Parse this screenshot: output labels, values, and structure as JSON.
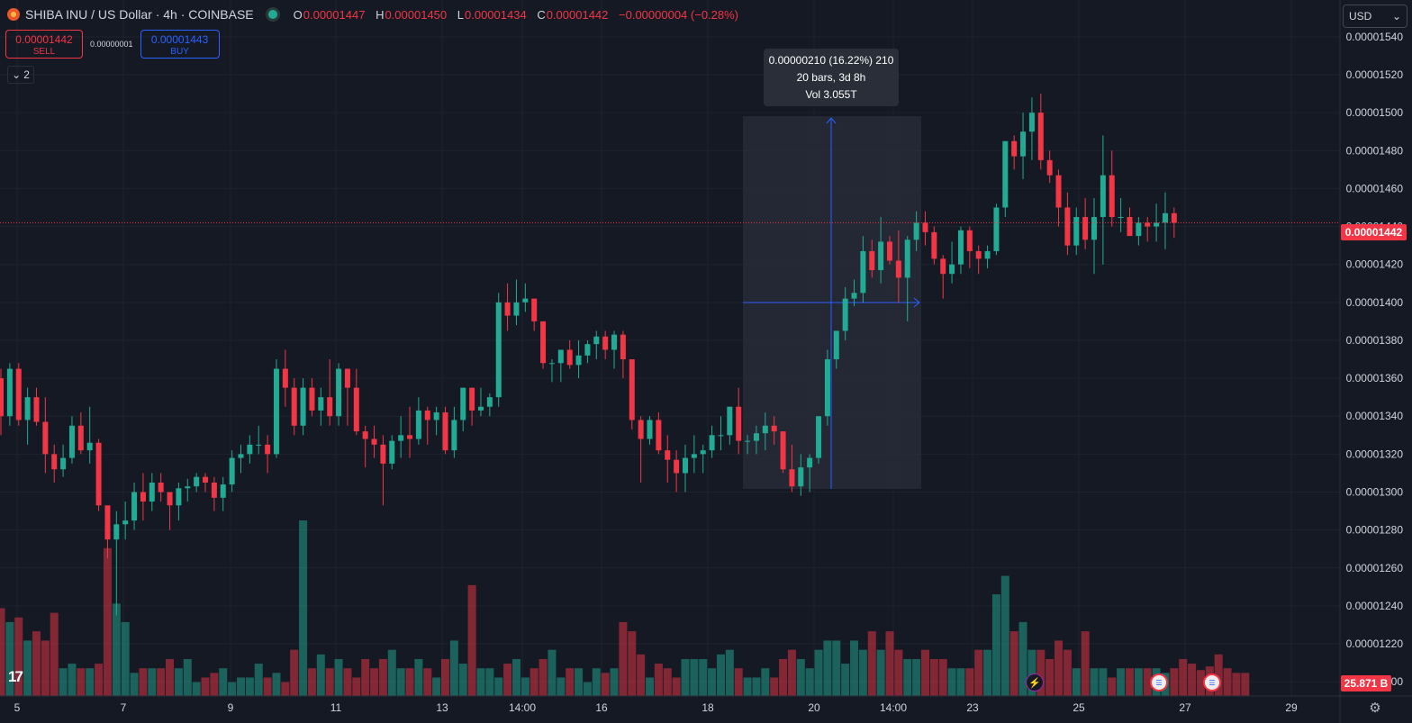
{
  "header": {
    "symbol": "SHIBA INU / US Dollar · 4h · COINBASE",
    "ohlc": [
      {
        "key": "O",
        "value": "0.00001447"
      },
      {
        "key": "H",
        "value": "0.00001450"
      },
      {
        "key": "L",
        "value": "0.00001434"
      },
      {
        "key": "C",
        "value": "0.00001442"
      }
    ],
    "change": "−0.00000004 (−0.28%)"
  },
  "trade": {
    "sell_price": "0.00001442",
    "sell_label": "SELL",
    "spread": "0.00000001",
    "buy_price": "0.00001443",
    "buy_label": "BUY"
  },
  "indicators_collapsed": "2",
  "currency": "USD",
  "tooltip": {
    "line1": "0.00000210 (16.22%) 210",
    "line2": "20 bars, 3d 8h",
    "line3": "Vol 3.055T"
  },
  "last_price_label": "0.00001442",
  "volume_label": "25.871 B",
  "logo_text": "17",
  "colors": {
    "up": "#22ab94",
    "down": "#f23645",
    "background": "#151924",
    "axis_text": "#d1d4dc",
    "measure": "#2962ff"
  },
  "icons": [
    "bolt-icon",
    "us-flag-icon",
    "us-flag-icon",
    "gear-icon"
  ],
  "chart_data": {
    "type": "candlestick",
    "y_ticks": [
      "0.00001540",
      "0.00001520",
      "0.00001500",
      "0.00001480",
      "0.00001460",
      "0.00001440",
      "0.00001420",
      "0.00001400",
      "0.00001380",
      "0.00001360",
      "0.00001340",
      "0.00001320",
      "0.00001300",
      "0.00001280",
      "0.00001260",
      "0.00001240",
      "0.00001220",
      "0.00001200"
    ],
    "x_ticks": [
      "5",
      "7",
      "9",
      "11",
      "13",
      "14:00",
      "16",
      "18",
      "20",
      "14:00",
      "23",
      "25",
      "27",
      "29"
    ],
    "last_price": 1.442e-05,
    "ylim": [
      1.1925e-05,
      1.5594e-05
    ],
    "candles": [
      [
        1.36e-05,
        1.365e-05,
        1.33e-05,
        1.34e-05
      ],
      [
        1.34e-05,
        1.368e-05,
        1.335e-05,
        1.365e-05
      ],
      [
        1.365e-05,
        1.368e-05,
        1.335e-05,
        1.338e-05
      ],
      [
        1.338e-05,
        1.355e-05,
        1.325e-05,
        1.35e-05
      ],
      [
        1.35e-05,
        1.355e-05,
        1.335e-05,
        1.337e-05
      ],
      [
        1.337e-05,
        1.35e-05,
        1.31e-05,
        1.32e-05
      ],
      [
        1.32e-05,
        1.325e-05,
        1.305e-05,
        1.312e-05
      ],
      [
        1.312e-05,
        1.325e-05,
        1.308e-05,
        1.318e-05
      ],
      [
        1.318e-05,
        1.34e-05,
        1.315e-05,
        1.335e-05
      ],
      [
        1.335e-05,
        1.342e-05,
        1.32e-05,
        1.322e-05
      ],
      [
        1.322e-05,
        1.345e-05,
        1.315e-05,
        1.326e-05
      ],
      [
        1.326e-05,
        1.328e-05,
        1.29e-05,
        1.293e-05
      ],
      [
        1.293e-05,
        1.29e-05,
        1.265e-05,
        1.275e-05
      ],
      [
        1.275e-05,
        1.29e-05,
        1.235e-05,
        1.283e-05
      ],
      [
        1.283e-05,
        1.295e-05,
        1.275e-05,
        1.285e-05
      ],
      [
        1.285e-05,
        1.305e-05,
        1.28e-05,
        1.3e-05
      ],
      [
        1.3e-05,
        1.31e-05,
        1.285e-05,
        1.295e-05
      ],
      [
        1.295e-05,
        1.31e-05,
        1.29e-05,
        1.305e-05
      ],
      [
        1.305e-05,
        1.31e-05,
        1.295e-05,
        1.3e-05
      ],
      [
        1.3e-05,
        1.3e-05,
        1.28e-05,
        1.293e-05
      ],
      [
        1.293e-05,
        1.305e-05,
        1.285e-05,
        1.302e-05
      ],
      [
        1.302e-05,
        1.307e-05,
        1.295e-05,
        1.303e-05
      ],
      [
        1.303e-05,
        1.31e-05,
        1.3e-05,
        1.308e-05
      ],
      [
        1.308e-05,
        1.31e-05,
        1.3e-05,
        1.305e-05
      ],
      [
        1.305e-05,
        1.308e-05,
        1.29e-05,
        1.297e-05
      ],
      [
        1.297e-05,
        1.308e-05,
        1.29e-05,
        1.304e-05
      ],
      [
        1.304e-05,
        1.322e-05,
        1.3e-05,
        1.318e-05
      ],
      [
        1.318e-05,
        1.325e-05,
        1.31e-05,
        1.32e-05
      ],
      [
        1.32e-05,
        1.33e-05,
        1.315e-05,
        1.325e-05
      ],
      [
        1.325e-05,
        1.335e-05,
        1.32e-05,
        1.325e-05
      ],
      [
        1.325e-05,
        1.33e-05,
        1.31e-05,
        1.32e-05
      ],
      [
        1.32e-05,
        1.37e-05,
        1.318e-05,
        1.365e-05
      ],
      [
        1.365e-05,
        1.375e-05,
        1.345e-05,
        1.355e-05
      ],
      [
        1.355e-05,
        1.36e-05,
        1.33e-05,
        1.335e-05
      ],
      [
        1.335e-05,
        1.36e-05,
        1.33e-05,
        1.355e-05
      ],
      [
        1.355e-05,
        1.36e-05,
        1.34e-05,
        1.343e-05
      ],
      [
        1.343e-05,
        1.355e-05,
        1.335e-05,
        1.35e-05
      ],
      [
        1.35e-05,
        1.37e-05,
        1.335e-05,
        1.34e-05
      ],
      [
        1.34e-05,
        1.368e-05,
        1.335e-05,
        1.365e-05
      ],
      [
        1.365e-05,
        1.365e-05,
        1.335e-05,
        1.355e-05
      ],
      [
        1.355e-05,
        1.365e-05,
        1.33e-05,
        1.332e-05
      ],
      [
        1.332e-05,
        1.335e-05,
        1.313e-05,
        1.328e-05
      ],
      [
        1.328e-05,
        1.335e-05,
        1.318e-05,
        1.325e-05
      ],
      [
        1.325e-05,
        1.33e-05,
        1.293e-05,
        1.315e-05
      ],
      [
        1.315e-05,
        1.33e-05,
        1.312e-05,
        1.327e-05
      ],
      [
        1.327e-05,
        1.34e-05,
        1.318e-05,
        1.33e-05
      ],
      [
        1.33e-05,
        1.345e-05,
        1.318e-05,
        1.328e-05
      ],
      [
        1.328e-05,
        1.35e-05,
        1.325e-05,
        1.343e-05
      ],
      [
        1.343e-05,
        1.345e-05,
        1.325e-05,
        1.338e-05
      ],
      [
        1.338e-05,
        1.345e-05,
        1.33e-05,
        1.342e-05
      ],
      [
        1.342e-05,
        1.345e-05,
        1.32e-05,
        1.322e-05
      ],
      [
        1.322e-05,
        1.345e-05,
        1.318e-05,
        1.338e-05
      ],
      [
        1.338e-05,
        1.355e-05,
        1.332e-05,
        1.355e-05
      ],
      [
        1.355e-05,
        1.355e-05,
        1.335e-05,
        1.343e-05
      ],
      [
        1.343e-05,
        1.355e-05,
        1.34e-05,
        1.345e-05
      ],
      [
        1.345e-05,
        1.352e-05,
        1.34e-05,
        1.35e-05
      ],
      [
        1.35e-05,
        1.405e-05,
        1.345e-05,
        1.4e-05
      ],
      [
        1.4e-05,
        1.41e-05,
        1.385e-05,
        1.393e-05
      ],
      [
        1.393e-05,
        1.412e-05,
        1.388e-05,
        1.4e-05
      ],
      [
        1.4e-05,
        1.41e-05,
        1.395e-05,
        1.402e-05
      ],
      [
        1.402e-05,
        1.402e-05,
        1.385e-05,
        1.39e-05
      ],
      [
        1.39e-05,
        1.39e-05,
        1.365e-05,
        1.368e-05
      ],
      [
        1.368e-05,
        1.37e-05,
        1.358e-05,
        1.368e-05
      ],
      [
        1.368e-05,
        1.375e-05,
        1.358e-05,
        1.375e-05
      ],
      [
        1.375e-05,
        1.38e-05,
        1.365e-05,
        1.367e-05
      ],
      [
        1.367e-05,
        1.38e-05,
        1.36e-05,
        1.372e-05
      ],
      [
        1.372e-05,
        1.38e-05,
        1.368e-05,
        1.378e-05
      ],
      [
        1.378e-05,
        1.385e-05,
        1.37e-05,
        1.382e-05
      ],
      [
        1.382e-05,
        1.385e-05,
        1.37e-05,
        1.375e-05
      ],
      [
        1.375e-05,
        1.385e-05,
        1.365e-05,
        1.383e-05
      ],
      [
        1.383e-05,
        1.385e-05,
        1.36e-05,
        1.37e-05
      ],
      [
        1.37e-05,
        1.37e-05,
        1.333e-05,
        1.338e-05
      ],
      [
        1.338e-05,
        1.34e-05,
        1.305e-05,
        1.328e-05
      ],
      [
        1.328e-05,
        1.34e-05,
        1.325e-05,
        1.338e-05
      ],
      [
        1.338e-05,
        1.342e-05,
        1.32e-05,
        1.322e-05
      ],
      [
        1.322e-05,
        1.33e-05,
        1.305e-05,
        1.317e-05
      ],
      [
        1.317e-05,
        1.322e-05,
        1.3e-05,
        1.31e-05
      ],
      [
        1.31e-05,
        1.325e-05,
        1.3e-05,
        1.318e-05
      ],
      [
        1.318e-05,
        1.33e-05,
        1.31e-05,
        1.32e-05
      ],
      [
        1.32e-05,
        1.325e-05,
        1.31e-05,
        1.322e-05
      ],
      [
        1.322e-05,
        1.335e-05,
        1.318e-05,
        1.33e-05
      ],
      [
        1.33e-05,
        1.34e-05,
        1.322e-05,
        1.33e-05
      ],
      [
        1.33e-05,
        1.345e-05,
        1.325e-05,
        1.345e-05
      ],
      [
        1.345e-05,
        1.355e-05,
        1.32e-05,
        1.327e-05
      ],
      [
        1.327e-05,
        1.33e-05,
        1.32e-05,
        1.327e-05
      ],
      [
        1.327e-05,
        1.335e-05,
        1.32e-05,
        1.331e-05
      ],
      [
        1.331e-05,
        1.342e-05,
        1.322e-05,
        1.335e-05
      ],
      [
        1.335e-05,
        1.34e-05,
        1.325e-05,
        1.332e-05
      ],
      [
        1.332e-05,
        1.332e-05,
        1.31e-05,
        1.312e-05
      ],
      [
        1.312e-05,
        1.325e-05,
        1.3e-05,
        1.303e-05
      ],
      [
        1.303e-05,
        1.32e-05,
        1.298e-05,
        1.313e-05
      ],
      [
        1.313e-05,
        1.32e-05,
        1.3e-05,
        1.318e-05
      ],
      [
        1.318e-05,
        1.34e-05,
        1.315e-05,
        1.34e-05
      ],
      [
        1.34e-05,
        1.375e-05,
        1.335e-05,
        1.37e-05
      ],
      [
        1.37e-05,
        1.385e-05,
        1.365e-05,
        1.385e-05
      ],
      [
        1.385e-05,
        1.408e-05,
        1.38e-05,
        1.402e-05
      ],
      [
        1.402e-05,
        1.412e-05,
        1.398e-05,
        1.405e-05
      ],
      [
        1.405e-05,
        1.435e-05,
        1.4e-05,
        1.427e-05
      ],
      [
        1.427e-05,
        1.433e-05,
        1.413e-05,
        1.417e-05
      ],
      [
        1.417e-05,
        1.445e-05,
        1.41e-05,
        1.432e-05
      ],
      [
        1.432e-05,
        1.435e-05,
        1.42e-05,
        1.422e-05
      ],
      [
        1.422e-05,
        1.438e-05,
        1.4e-05,
        1.413e-05
      ],
      [
        1.413e-05,
        1.435e-05,
        1.39e-05,
        1.433e-05
      ],
      [
        1.433e-05,
        1.448e-05,
        1.427e-05,
        1.442e-05
      ],
      [
        1.442e-05,
        1.448e-05,
        1.43e-05,
        1.437e-05
      ],
      [
        1.437e-05,
        1.44e-05,
        1.42e-05,
        1.423e-05
      ],
      [
        1.423e-05,
        1.425e-05,
        1.402e-05,
        1.415e-05
      ],
      [
        1.415e-05,
        1.432e-05,
        1.41e-05,
        1.42e-05
      ],
      [
        1.42e-05,
        1.44e-05,
        1.415e-05,
        1.438e-05
      ],
      [
        1.438e-05,
        1.44e-05,
        1.418e-05,
        1.427e-05
      ],
      [
        1.427e-05,
        1.43e-05,
        1.415e-05,
        1.423e-05
      ],
      [
        1.423e-05,
        1.43e-05,
        1.418e-05,
        1.427e-05
      ],
      [
        1.427e-05,
        1.452e-05,
        1.425e-05,
        1.45e-05
      ],
      [
        1.45e-05,
        1.485e-05,
        1.445e-05,
        1.485e-05
      ],
      [
        1.485e-05,
        1.488e-05,
        1.47e-05,
        1.477e-05
      ],
      [
        1.477e-05,
        1.5e-05,
        1.465e-05,
        1.49e-05
      ],
      [
        1.49e-05,
        1.508e-05,
        1.475e-05,
        1.5e-05
      ],
      [
        1.5e-05,
        1.51e-05,
        1.47e-05,
        1.475e-05
      ],
      [
        1.475e-05,
        1.48e-05,
        1.463e-05,
        1.467e-05
      ],
      [
        1.467e-05,
        1.47e-05,
        1.44e-05,
        1.45e-05
      ],
      [
        1.45e-05,
        1.458e-05,
        1.425e-05,
        1.43e-05
      ],
      [
        1.43e-05,
        1.45e-05,
        1.425e-05,
        1.445e-05
      ],
      [
        1.445e-05,
        1.455e-05,
        1.428e-05,
        1.433e-05
      ],
      [
        1.433e-05,
        1.455e-05,
        1.415e-05,
        1.445e-05
      ],
      [
        1.445e-05,
        1.488e-05,
        1.42e-05,
        1.467e-05
      ],
      [
        1.467e-05,
        1.48e-05,
        1.44e-05,
        1.445e-05
      ],
      [
        1.445e-05,
        1.455e-05,
        1.437e-05,
        1.445e-05
      ],
      [
        1.445e-05,
        1.45e-05,
        1.435e-05,
        1.435e-05
      ],
      [
        1.435e-05,
        1.445e-05,
        1.43e-05,
        1.442e-05
      ],
      [
        1.442e-05,
        1.445e-05,
        1.432e-05,
        1.44e-05
      ],
      [
        1.44e-05,
        1.452e-05,
        1.432e-05,
        1.442e-05
      ],
      [
        1.442e-05,
        1.458e-05,
        1.428e-05,
        1.447e-05
      ],
      [
        1.447e-05,
        1.45e-05,
        1.434e-05,
        1.442e-05
      ]
    ],
    "volume_units": "B",
    "volumes": [
      9.5,
      8,
      8.5,
      6,
      7,
      6,
      9,
      3,
      3.5,
      3,
      3,
      3.5,
      16,
      10,
      8,
      2.5,
      3,
      3,
      3,
      4,
      3,
      4,
      1.5,
      2,
      2.5,
      3,
      1.5,
      2,
      2,
      3.5,
      2,
      2.5,
      1.5,
      5,
      19,
      3,
      4.5,
      3,
      4,
      3,
      2,
      4,
      3,
      4,
      5,
      3,
      3,
      4,
      3,
      2,
      4,
      6,
      3.5,
      12,
      3,
      3,
      2,
      3.5,
      4,
      2,
      3,
      4,
      5,
      2,
      3,
      3,
      1.5,
      3,
      2.5,
      3,
      8,
      7,
      4.5,
      2,
      3.5,
      3,
      2,
      4,
      4,
      4,
      3,
      4.5,
      5,
      3,
      2,
      2,
      3,
      2,
      4,
      5,
      4,
      3,
      5,
      6,
      6,
      3.5,
      6,
      5,
      7,
      5,
      7,
      5,
      4,
      4,
      5,
      4,
      4,
      3,
      3,
      3,
      5,
      5,
      11,
      13,
      7,
      8,
      5,
      5,
      4,
      6,
      5,
      3,
      7,
      3,
      3,
      2,
      3,
      3,
      3,
      3,
      3,
      2.5,
      3,
      4,
      3.5,
      2.8,
      3.2,
      4.5,
      3,
      2.5,
      2.5
    ]
  }
}
